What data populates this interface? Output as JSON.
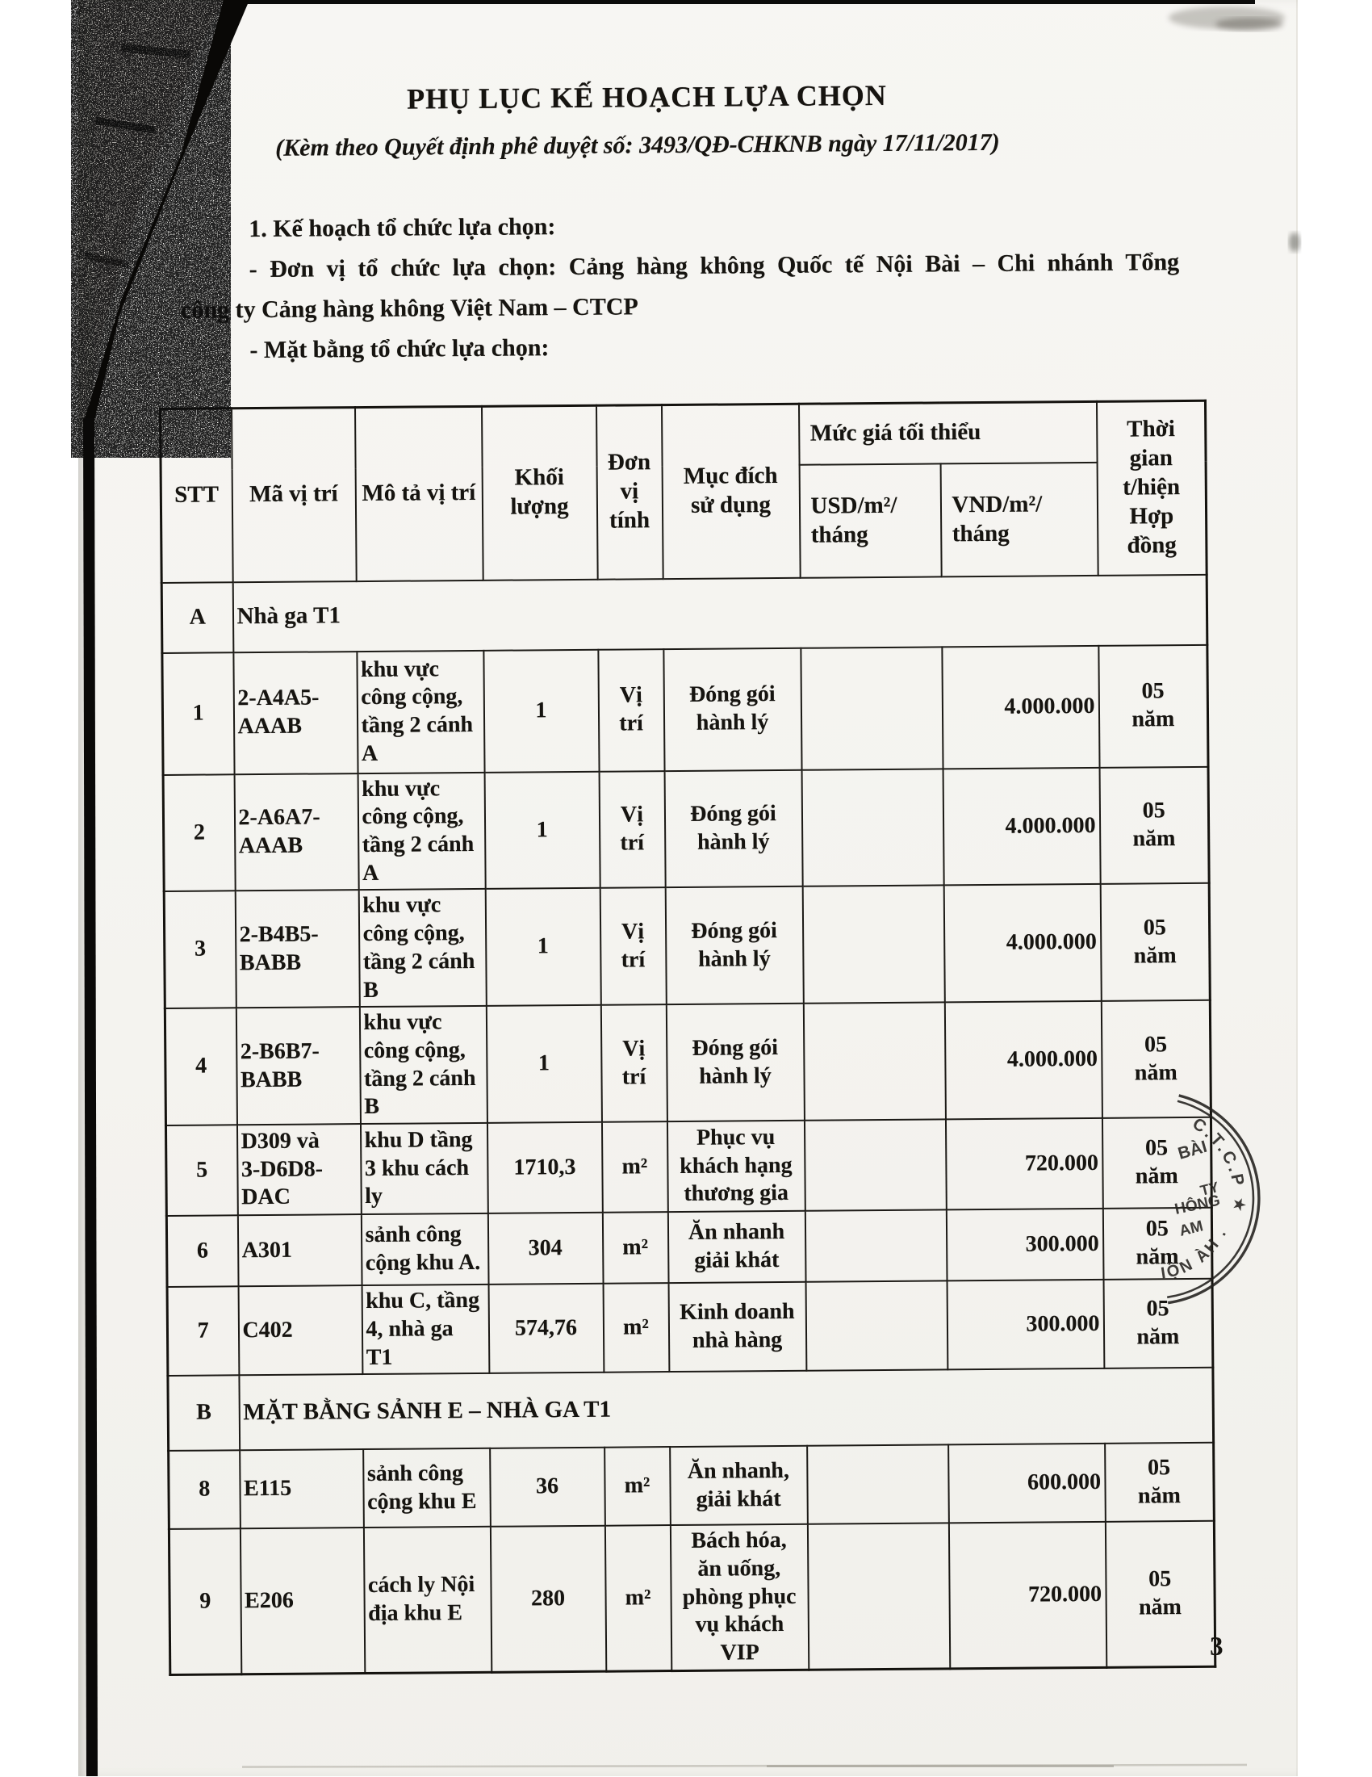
{
  "page": {
    "title": "PHỤ LỤC KẾ HOẠCH LỰA CHỌN",
    "subtitle": "(Kèm theo Quyết định phê duyệt số: 3493/QĐ-CHKNB ngày 17/11/2017)",
    "heading_1": "1. Kế hoạch tổ chức lựa chọn:",
    "line_don_vi": "- Đơn vị tổ chức lựa chọn: Cảng hàng không Quốc tế Nội Bài – Chi nhánh Tổng",
    "line_cong_ty": "công ty Cảng hàng không Việt Nam – CTCP",
    "line_mat_bang": "- Mặt bằng tổ chức lựa chọn:",
    "page_number": "3"
  },
  "table": {
    "headers": {
      "stt": "STT",
      "ma_vi_tri": "Mã vị trí",
      "mo_ta_vi_tri": "Mô tả vị trí",
      "khoi_luong": "Khối\nlượng",
      "don_vi_tinh": "Đơn\nvị\ntính",
      "muc_dich_su_dung": "Mục đích\nsử dụng",
      "muc_gia_toi_thieu": "Mức giá tối thiểu",
      "usd": "USD/m²/\ntháng",
      "vnd": "VND/m²/\ntháng",
      "thoi_gian": "Thời\ngian\nt/hiện\nHợp\nđồng"
    },
    "body": [
      {
        "type": "section",
        "stt": "A",
        "label": "Nhà ga T1"
      },
      {
        "type": "item",
        "stt": "1",
        "ma": "2-A4A5-\nAAAB",
        "mo_ta": "khu vực\ncông cộng,\ntầng 2 cánh\nA",
        "khoi_luong": "1",
        "don_vi": "Vị\ntrí",
        "muc_dich": "Đóng gói\nhành lý",
        "usd": "",
        "vnd": "4.000.000",
        "thoi_gian": "05\nnăm"
      },
      {
        "type": "item",
        "stt": "2",
        "ma": "2-A6A7-\nAAAB",
        "mo_ta": "khu vực\ncông cộng,\ntầng 2 cánh\nA",
        "khoi_luong": "1",
        "don_vi": "Vị\ntrí",
        "muc_dich": "Đóng gói\nhành lý",
        "usd": "",
        "vnd": "4.000.000",
        "thoi_gian": "05\nnăm"
      },
      {
        "type": "item",
        "stt": "3",
        "ma": "2-B4B5-\nBABB",
        "mo_ta": "khu vực\ncông cộng,\ntầng 2 cánh\nB",
        "khoi_luong": "1",
        "don_vi": "Vị\ntrí",
        "muc_dich": "Đóng gói\nhành lý",
        "usd": "",
        "vnd": "4.000.000",
        "thoi_gian": "05\nnăm"
      },
      {
        "type": "item",
        "stt": "4",
        "ma": "2-B6B7-\nBABB",
        "mo_ta": "khu vực\ncông cộng,\ntầng 2 cánh\nB",
        "khoi_luong": "1",
        "don_vi": "Vị\ntrí",
        "muc_dich": "Đóng gói\nhành lý",
        "usd": "",
        "vnd": "4.000.000",
        "thoi_gian": "05\nnăm"
      },
      {
        "type": "item",
        "stt": "5",
        "ma": "D309 và\n3-D6D8-\nDAC",
        "mo_ta": "khu D tầng\n3 khu cách\nly",
        "khoi_luong": "1710,3",
        "don_vi": "m²",
        "muc_dich": "Phục vụ\nkhách hạng\nthương gia",
        "usd": "",
        "vnd": "720.000",
        "thoi_gian": "05\nnăm"
      },
      {
        "type": "item",
        "stt": "6",
        "ma": "A301",
        "mo_ta": "sảnh công\ncộng khu A.",
        "khoi_luong": "304",
        "don_vi": "m²",
        "muc_dich": "Ăn nhanh\ngiải khát",
        "usd": "",
        "vnd": "300.000",
        "thoi_gian": "05\nnăm"
      },
      {
        "type": "item",
        "stt": "7",
        "ma": "C402",
        "mo_ta": "khu C, tầng\n4, nhà ga T1",
        "khoi_luong": "574,76",
        "don_vi": "m²",
        "muc_dich": "Kinh doanh\nnhà hàng",
        "usd": "",
        "vnd": "300.000",
        "thoi_gian": "05\nnăm"
      },
      {
        "type": "section",
        "stt": "B",
        "label": "MẶT BẰNG SẢNH E – NHÀ GA T1"
      },
      {
        "type": "item",
        "stt": "8",
        "ma": "E115",
        "mo_ta": "sảnh công\ncộng khu E",
        "khoi_luong": "36",
        "don_vi": "m²",
        "muc_dich": "Ăn nhanh,\ngiải khát",
        "usd": "",
        "vnd": "600.000",
        "thoi_gian": "05\nnăm"
      },
      {
        "type": "item",
        "stt": "9",
        "ma": "E206",
        "mo_ta": "cách ly Nội\nđịa khu E",
        "khoi_luong": "280",
        "don_vi": "m²",
        "muc_dich": "Bách hóa,\năn uống,\nphòng phục\nvụ khách\nVIP",
        "usd": "",
        "vnd": "720.000",
        "thoi_gian": "05\nnăm"
      }
    ]
  },
  "stamp": {
    "arc_top": "C.T.C.P ★",
    "arc_bottom": "IỘN ÀH .P",
    "fragments": [
      "BÀI",
      "TY",
      "HÔNG",
      "AM"
    ]
  }
}
